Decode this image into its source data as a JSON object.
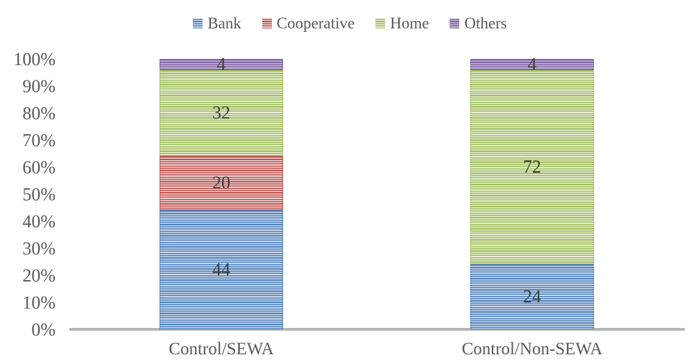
{
  "chart_data": {
    "type": "bar",
    "variant": "stacked-100-percent",
    "categories": [
      "Control/SEWA",
      "Control/Non-SEWA"
    ],
    "series": [
      {
        "name": "Bank",
        "values": [
          44,
          24
        ],
        "color": "#4f81bd",
        "tint": "#ccd9ea"
      },
      {
        "name": "Cooperative",
        "values": [
          20,
          0
        ],
        "color": "#c0504d",
        "tint": "#f0d6d4"
      },
      {
        "name": "Home",
        "values": [
          32,
          72
        ],
        "color": "#9bbb59",
        "tint": "#ebf2d7"
      },
      {
        "name": "Others",
        "values": [
          4,
          4
        ],
        "color": "#8064a2",
        "tint": "#c5b7d6"
      }
    ],
    "data_labels": {
      "Control/SEWA": [
        44,
        20,
        32,
        4
      ],
      "Control/Non-SEWA": [
        24,
        0,
        72,
        4
      ]
    },
    "y_ticks": [
      "0%",
      "10%",
      "20%",
      "30%",
      "40%",
      "50%",
      "60%",
      "70%",
      "80%",
      "90%",
      "100%"
    ],
    "ylim": [
      0,
      100
    ],
    "xlabel": "",
    "ylabel": "",
    "title": "",
    "legend_position": "top",
    "legend_entries": [
      "Bank",
      "Cooperative",
      "Home",
      "Others"
    ],
    "gridlines": false,
    "fill_pattern": "thin-horizontal-stripes"
  },
  "colors": {
    "axis_line": "#b5b5b5",
    "tick_text": "#595959",
    "category_text": "#595959",
    "legend_text": "#595959",
    "data_label_text": "#3d3d3d",
    "background": "#ffffff"
  }
}
